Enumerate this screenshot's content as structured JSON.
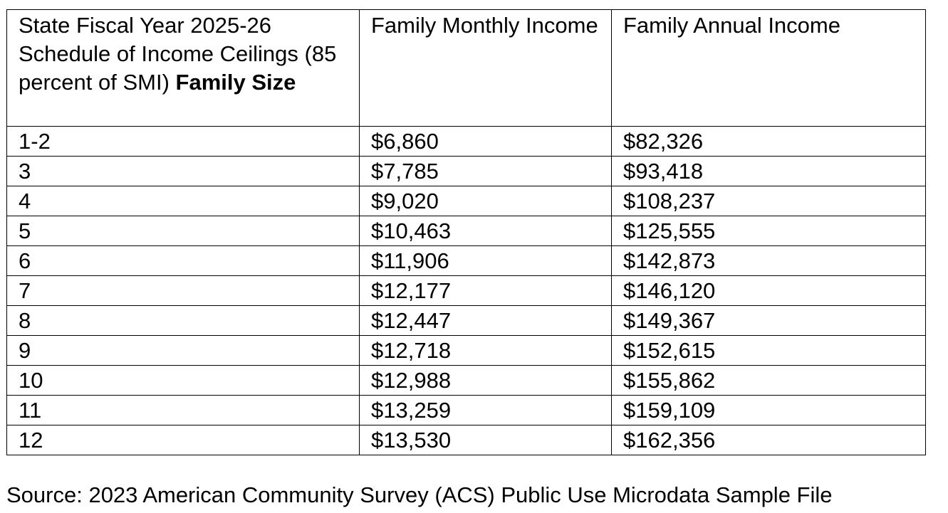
{
  "table": {
    "header": {
      "size_col_prefix": "State Fiscal Year 2025-26 Schedule of Income Ceilings (85 percent of SMI) ",
      "size_col_bold": "Family Size",
      "monthly_col": "Family Monthly Income",
      "annual_col": "Family Annual Income"
    },
    "rows": [
      {
        "family_size": "1-2",
        "monthly": "$6,860",
        "annual": "$82,326"
      },
      {
        "family_size": "3",
        "monthly": "$7,785",
        "annual": "$93,418"
      },
      {
        "family_size": "4",
        "monthly": "$9,020",
        "annual": "$108,237"
      },
      {
        "family_size": "5",
        "monthly": "$10,463",
        "annual": "$125,555"
      },
      {
        "family_size": "6",
        "monthly": "$11,906",
        "annual": "$142,873"
      },
      {
        "family_size": "7",
        "monthly": "$12,177",
        "annual": "$146,120"
      },
      {
        "family_size": "8",
        "monthly": "$12,447",
        "annual": "$149,367"
      },
      {
        "family_size": "9",
        "monthly": "$12,718",
        "annual": "$152,615"
      },
      {
        "family_size": "10",
        "monthly": "$12,988",
        "annual": "$155,862"
      },
      {
        "family_size": "11",
        "monthly": "$13,259",
        "annual": "$159,109"
      },
      {
        "family_size": "12",
        "monthly": "$13,530",
        "annual": "$162,356"
      }
    ]
  },
  "source_note": "Source: 2023 American Community Survey (ACS) Public Use Microdata Sample File"
}
